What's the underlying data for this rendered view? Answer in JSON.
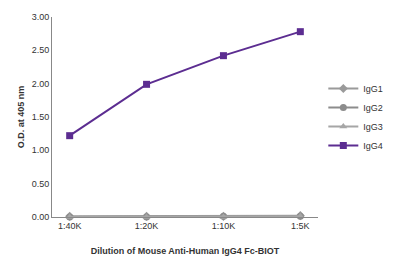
{
  "chart_data": {
    "type": "line",
    "x_label": "Dilution of Mouse Anti-Human IgG4 Fc-BIOT",
    "y_label": "O.D. at 405 nm",
    "categories": [
      "1:40K",
      "1:20K",
      "1:10K",
      "1:5K"
    ],
    "series": [
      {
        "name": "IgG1",
        "color": "#9a9a9a",
        "marker": "diamond",
        "values": [
          0.01,
          0.01,
          0.01,
          0.02
        ]
      },
      {
        "name": "IgG2",
        "color": "#8c8c8c",
        "marker": "circle",
        "values": [
          0.0,
          0.0,
          0.01,
          0.01
        ]
      },
      {
        "name": "IgG3",
        "color": "#a6a6a6",
        "marker": "triangle",
        "values": [
          0.0,
          0.0,
          0.0,
          0.01
        ]
      },
      {
        "name": "IgG4",
        "color": "#5c2d91",
        "marker": "square",
        "values": [
          1.22,
          1.99,
          2.42,
          2.78
        ]
      }
    ],
    "ylim": [
      0,
      3
    ],
    "yticks": [
      {
        "value": 0,
        "label": "0.00"
      },
      {
        "value": 0.5,
        "label": "0.50"
      },
      {
        "value": 1,
        "label": "1.00"
      },
      {
        "value": 1.5,
        "label": "1.50"
      },
      {
        "value": 2,
        "label": "2.00"
      },
      {
        "value": 2.5,
        "label": "2.50"
      },
      {
        "value": 3,
        "label": "3.00"
      }
    ],
    "grid": false,
    "legend": "right"
  }
}
